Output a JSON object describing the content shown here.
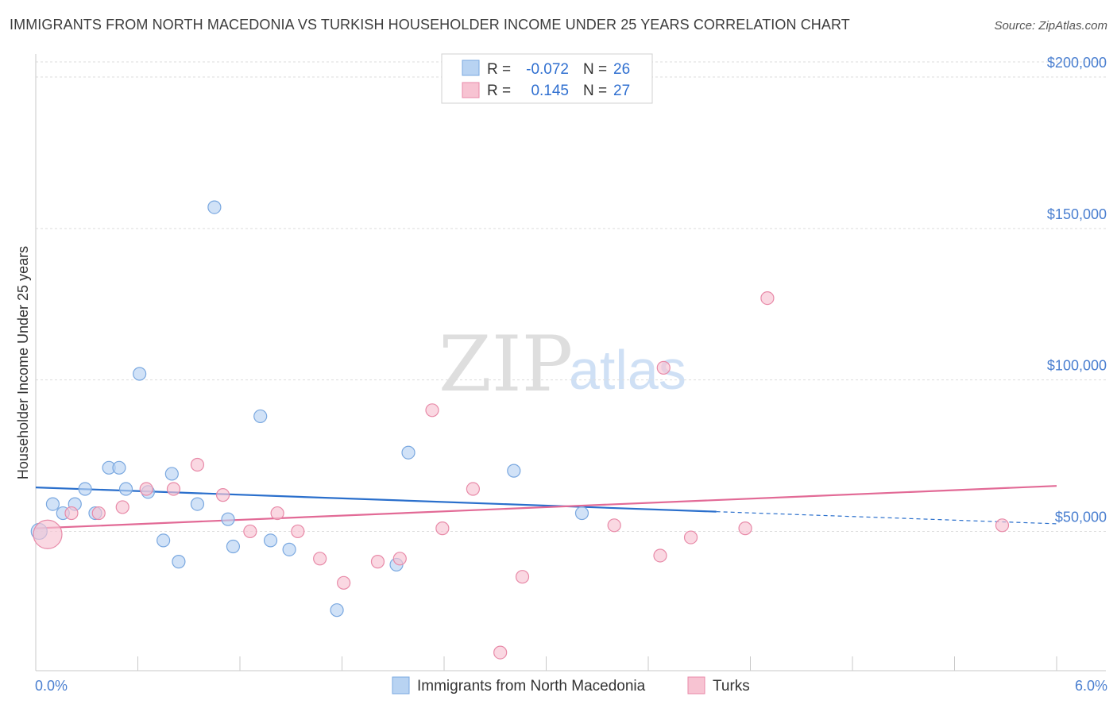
{
  "header": {
    "title": "IMMIGRANTS FROM NORTH MACEDONIA VS TURKISH HOUSEHOLDER INCOME UNDER 25 YEARS CORRELATION CHART",
    "source": "Source: ZipAtlas.com"
  },
  "watermark": {
    "zip": "ZIP",
    "atlas": "atlas"
  },
  "colors": {
    "blue_fill": "#b8d3f2",
    "blue_stroke": "#7aa8e0",
    "blue_line": "#2a6fcc",
    "pink_fill": "#f7c3d2",
    "pink_stroke": "#e88aa8",
    "pink_line": "#e26a96",
    "grid": "#dddddd",
    "tick_label": "#4a7fd0"
  },
  "legend": {
    "rows": [
      {
        "r_label": "R =",
        "r_value": "-0.072",
        "n_label": "N =",
        "n_value": "26"
      },
      {
        "r_label": "R =",
        "r_value": "0.145",
        "n_label": "N =",
        "n_value": "27"
      }
    ]
  },
  "chart_data": {
    "type": "scatter",
    "title": "IMMIGRANTS FROM NORTH MACEDONIA VS TURKISH HOUSEHOLDER INCOME UNDER 25 YEARS CORRELATION CHART",
    "xlabel": "",
    "ylabel": "Householder Income Under 25 years",
    "xlim": [
      0,
      6
    ],
    "ylim": [
      0,
      205000
    ],
    "x_tick_labels": {
      "min": "0.0%",
      "max": "6.0%"
    },
    "y_ticks": [
      {
        "value": 50000,
        "label": "$50,000"
      },
      {
        "value": 100000,
        "label": "$100,000"
      },
      {
        "value": 150000,
        "label": "$150,000"
      },
      {
        "value": 200000,
        "label": "$200,000"
      }
    ],
    "grid": true,
    "series": [
      {
        "name": "Immigrants from North Macedonia",
        "color": "blue",
        "r": -0.072,
        "n": 26,
        "points": [
          {
            "x": 0.02,
            "y": 50000,
            "size": 10
          },
          {
            "x": 0.1,
            "y": 59000
          },
          {
            "x": 0.16,
            "y": 56000
          },
          {
            "x": 0.23,
            "y": 59000
          },
          {
            "x": 0.29,
            "y": 64000
          },
          {
            "x": 0.35,
            "y": 56000
          },
          {
            "x": 0.43,
            "y": 71000
          },
          {
            "x": 0.49,
            "y": 71000
          },
          {
            "x": 0.53,
            "y": 64000
          },
          {
            "x": 0.61,
            "y": 102000
          },
          {
            "x": 0.66,
            "y": 63000
          },
          {
            "x": 0.75,
            "y": 47000
          },
          {
            "x": 0.8,
            "y": 69000
          },
          {
            "x": 0.84,
            "y": 40000
          },
          {
            "x": 0.95,
            "y": 59000
          },
          {
            "x": 1.05,
            "y": 157000
          },
          {
            "x": 1.13,
            "y": 54000
          },
          {
            "x": 1.16,
            "y": 45000
          },
          {
            "x": 1.32,
            "y": 88000
          },
          {
            "x": 1.38,
            "y": 47000
          },
          {
            "x": 1.49,
            "y": 44000
          },
          {
            "x": 1.77,
            "y": 24000
          },
          {
            "x": 2.12,
            "y": 39000
          },
          {
            "x": 2.19,
            "y": 76000
          },
          {
            "x": 2.81,
            "y": 70000
          },
          {
            "x": 3.21,
            "y": 56000
          }
        ],
        "trend": {
          "x_start": 0.0,
          "y_start": 64500,
          "x_end": 4.0,
          "y_end": 56500,
          "dash_x_end": 6.0,
          "dash_y_end": 52500
        }
      },
      {
        "name": "Turks",
        "color": "pink",
        "r": 0.145,
        "n": 27,
        "points": [
          {
            "x": 0.07,
            "y": 49000,
            "size": 18
          },
          {
            "x": 0.21,
            "y": 56000
          },
          {
            "x": 0.37,
            "y": 56000
          },
          {
            "x": 0.51,
            "y": 58000
          },
          {
            "x": 0.65,
            "y": 64000
          },
          {
            "x": 0.81,
            "y": 64000
          },
          {
            "x": 0.95,
            "y": 72000
          },
          {
            "x": 1.1,
            "y": 62000
          },
          {
            "x": 1.26,
            "y": 50000
          },
          {
            "x": 1.42,
            "y": 56000
          },
          {
            "x": 1.54,
            "y": 50000
          },
          {
            "x": 1.67,
            "y": 41000
          },
          {
            "x": 1.81,
            "y": 33000
          },
          {
            "x": 2.01,
            "y": 40000
          },
          {
            "x": 2.14,
            "y": 41000
          },
          {
            "x": 2.33,
            "y": 90000
          },
          {
            "x": 2.39,
            "y": 51000
          },
          {
            "x": 2.57,
            "y": 64000
          },
          {
            "x": 2.73,
            "y": 10000
          },
          {
            "x": 2.86,
            "y": 35000
          },
          {
            "x": 3.4,
            "y": 52000
          },
          {
            "x": 3.67,
            "y": 42000
          },
          {
            "x": 3.69,
            "y": 104000
          },
          {
            "x": 3.85,
            "y": 48000
          },
          {
            "x": 4.17,
            "y": 51000
          },
          {
            "x": 4.3,
            "y": 127000
          },
          {
            "x": 5.68,
            "y": 52000
          }
        ],
        "trend": {
          "x_start": 0.0,
          "y_start": 51000,
          "x_end": 6.0,
          "y_end": 65000
        }
      }
    ]
  },
  "bottom_legend": {
    "items": [
      {
        "label": "Immigrants from North Macedonia",
        "color": "blue"
      },
      {
        "label": "Turks",
        "color": "pink"
      }
    ]
  }
}
